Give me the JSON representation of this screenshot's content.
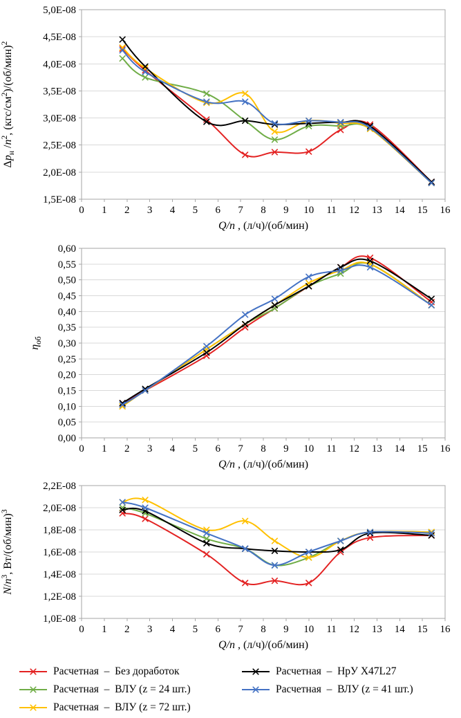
{
  "figure": {
    "background": "#FFFFFF"
  },
  "style": {
    "grid_color": "#D9D9D9",
    "axis_color": "#A6A6A6",
    "text_color": "#000000",
    "tick_font_size": 15,
    "title_font_size": 16
  },
  "legend": {
    "items": [
      {
        "label": "Расчетная  –  Без доработок",
        "color": "#E32222"
      },
      {
        "label": "Расчетная  –  ВЛУ (z = 24 шт.)",
        "color": "#70AD47"
      },
      {
        "label": "Расчетная  –  ВЛУ (z = 72 шт.)",
        "color": "#FFC000"
      },
      {
        "label": "Расчетная  –  НрУ X47L27",
        "color": "#000000"
      },
      {
        "label": "Расчетная  –  ВЛУ (z = 41 шт.)",
        "color": "#4472C4"
      }
    ]
  },
  "chart_data": [
    {
      "type": "line",
      "title": "",
      "grid": "horizontal",
      "marker": "x",
      "xlim": [
        0,
        16
      ],
      "ylim": [
        1.5e-08,
        5e-08
      ],
      "x": [
        1.8,
        2.8,
        5.5,
        7.2,
        8.5,
        10,
        11.4,
        12.7,
        15.4
      ],
      "x_tick_labels": [
        "0",
        "1",
        "2",
        "3",
        "4",
        "5",
        "6",
        "7",
        "8",
        "9",
        "10",
        "11",
        "12",
        "13",
        "14",
        "15",
        "16"
      ],
      "y_tick_labels": [
        "1,5E-08",
        "2,0E-08",
        "2,5E-08",
        "3,0E-08",
        "3,5E-08",
        "4,0E-08",
        "4,5E-08",
        "5,0E-08"
      ],
      "xlabel_tokens": [
        {
          "t": "Q/n",
          "i": true
        },
        {
          "t": " , (л/ч)/(об/мин)"
        }
      ],
      "ylabel_tokens": [
        {
          "t": "Δ"
        },
        {
          "t": "p",
          "i": true
        },
        {
          "t": "н",
          "sub": true
        },
        {
          "t": " /"
        },
        {
          "t": "n",
          "i": true
        },
        {
          "t": "2",
          "sup": true
        },
        {
          "t": ", (кгс/см"
        },
        {
          "t": "2",
          "sup": true
        },
        {
          "t": ")/(об/мин)"
        },
        {
          "t": "2",
          "sup": true
        }
      ],
      "series": [
        {
          "name": "Расчетная – Без доработок",
          "color": "#E32222",
          "values": [
            4.28e-08,
            3.88e-08,
            2.97e-08,
            2.32e-08,
            2.37e-08,
            2.38e-08,
            2.78e-08,
            2.88e-08,
            1.82e-08
          ]
        },
        {
          "name": "Расчетная – ВЛУ (z = 24 шт.)",
          "color": "#70AD47",
          "values": [
            4.1e-08,
            3.75e-08,
            3.45e-08,
            2.95e-08,
            2.6e-08,
            2.85e-08,
            2.85e-08,
            2.8e-08,
            1.8e-08
          ]
        },
        {
          "name": "Расчетная – ВЛУ (z = 72 шт.)",
          "color": "#FFC000",
          "values": [
            4.3e-08,
            3.92e-08,
            3.28e-08,
            3.45e-08,
            2.75e-08,
            2.95e-08,
            2.9e-08,
            2.8e-08,
            1.8e-08
          ]
        },
        {
          "name": "Расчетная – НрУ X47L27",
          "color": "#000000",
          "values": [
            4.45e-08,
            3.95e-08,
            2.93e-08,
            2.95e-08,
            2.88e-08,
            2.9e-08,
            2.92e-08,
            2.85e-08,
            1.82e-08
          ]
        },
        {
          "name": "Расчетная – ВЛУ (z = 41 шт.)",
          "color": "#4472C4",
          "values": [
            4.25e-08,
            3.85e-08,
            3.3e-08,
            3.3e-08,
            2.9e-08,
            2.95e-08,
            2.92e-08,
            2.82e-08,
            1.8e-08
          ]
        }
      ]
    },
    {
      "type": "line",
      "title": "",
      "grid": "horizontal",
      "marker": "x",
      "xlim": [
        0,
        16
      ],
      "ylim": [
        0,
        0.6
      ],
      "x": [
        1.8,
        2.8,
        5.5,
        7.2,
        8.5,
        10,
        11.4,
        12.7,
        15.4
      ],
      "x_tick_labels": [
        "0",
        "1",
        "2",
        "3",
        "4",
        "5",
        "6",
        "7",
        "8",
        "9",
        "10",
        "11",
        "12",
        "13",
        "14",
        "15",
        "16"
      ],
      "y_tick_labels": [
        "0,00",
        "0,05",
        "0,10",
        "0,15",
        "0,20",
        "0,25",
        "0,30",
        "0,35",
        "0,40",
        "0,45",
        "0,50",
        "0,55",
        "0,60"
      ],
      "xlabel_tokens": [
        {
          "t": "Q/n",
          "i": true
        },
        {
          "t": " , (л/ч)/(об/мин)"
        }
      ],
      "ylabel_tokens": [
        {
          "t": "η",
          "i": true
        },
        {
          "t": "об",
          "sub": true
        }
      ],
      "series": [
        {
          "name": "Расчетная – Без доработок",
          "color": "#E32222",
          "values": [
            0.11,
            0.15,
            0.26,
            0.35,
            0.41,
            0.48,
            0.54,
            0.57,
            0.43
          ]
        },
        {
          "name": "Расчетная – ВЛУ (z = 24 шт.)",
          "color": "#70AD47",
          "values": [
            0.1,
            0.15,
            0.28,
            0.36,
            0.41,
            0.48,
            0.52,
            0.55,
            0.42
          ]
        },
        {
          "name": "Расчетная – ВЛУ (z = 72 шт.)",
          "color": "#FFC000",
          "values": [
            0.1,
            0.15,
            0.28,
            0.36,
            0.42,
            0.49,
            0.53,
            0.55,
            0.42
          ]
        },
        {
          "name": "Расчетная – НрУ X47L27",
          "color": "#000000",
          "values": [
            0.11,
            0.155,
            0.27,
            0.36,
            0.42,
            0.48,
            0.54,
            0.56,
            0.44
          ]
        },
        {
          "name": "Расчетная – ВЛУ (z = 41 шт.)",
          "color": "#4472C4",
          "values": [
            0.105,
            0.15,
            0.29,
            0.39,
            0.44,
            0.51,
            0.53,
            0.54,
            0.42
          ]
        }
      ]
    },
    {
      "type": "line",
      "title": "",
      "grid": "horizontal",
      "marker": "x",
      "xlim": [
        0,
        16
      ],
      "ylim": [
        1e-08,
        2.2e-08
      ],
      "x": [
        1.8,
        2.8,
        5.5,
        7.2,
        8.5,
        10,
        11.4,
        12.7,
        15.4
      ],
      "x_tick_labels": [
        "0",
        "1",
        "2",
        "3",
        "4",
        "5",
        "6",
        "7",
        "8",
        "9",
        "10",
        "11",
        "12",
        "13",
        "14",
        "15",
        "16"
      ],
      "y_tick_labels": [
        "1,0E-08",
        "1,2E-08",
        "1,4E-08",
        "1,6E-08",
        "1,8E-08",
        "2,0E-08",
        "2,2E-08"
      ],
      "xlabel_tokens": [
        {
          "t": "Q/n",
          "i": true
        },
        {
          "t": " , (л/ч)/(об/мин)"
        }
      ],
      "ylabel_tokens": [
        {
          "t": "N",
          "i": true
        },
        {
          "t": "/"
        },
        {
          "t": "n",
          "i": true
        },
        {
          "t": "3",
          "sup": true
        },
        {
          "t": ", Вт/(об/мин)"
        },
        {
          "t": "3",
          "sup": true
        }
      ],
      "series": [
        {
          "name": "Расчетная – Без доработок",
          "color": "#E32222",
          "values": [
            1.95e-08,
            1.9e-08,
            1.58e-08,
            1.32e-08,
            1.34e-08,
            1.32e-08,
            1.6e-08,
            1.73e-08,
            1.75e-08
          ]
        },
        {
          "name": "Расчетная – ВЛУ (z = 24 шт.)",
          "color": "#70AD47",
          "values": [
            2e-08,
            1.95e-08,
            1.72e-08,
            1.63e-08,
            1.48e-08,
            1.55e-08,
            1.7e-08,
            1.78e-08,
            1.78e-08
          ]
        },
        {
          "name": "Расчетная – ВЛУ (z = 72 шт.)",
          "color": "#FFC000",
          "values": [
            2.05e-08,
            2.07e-08,
            1.8e-08,
            1.88e-08,
            1.7e-08,
            1.55e-08,
            1.7e-08,
            1.78e-08,
            1.78e-08
          ]
        },
        {
          "name": "Расчетная – НрУ X47L27",
          "color": "#000000",
          "values": [
            1.98e-08,
            1.97e-08,
            1.68e-08,
            1.63e-08,
            1.61e-08,
            1.6e-08,
            1.62e-08,
            1.77e-08,
            1.75e-08
          ]
        },
        {
          "name": "Расчетная – ВЛУ (z = 41 шт.)",
          "color": "#4472C4",
          "values": [
            2.05e-08,
            2e-08,
            1.77e-08,
            1.63e-08,
            1.48e-08,
            1.6e-08,
            1.7e-08,
            1.78e-08,
            1.77e-08
          ]
        }
      ]
    }
  ]
}
